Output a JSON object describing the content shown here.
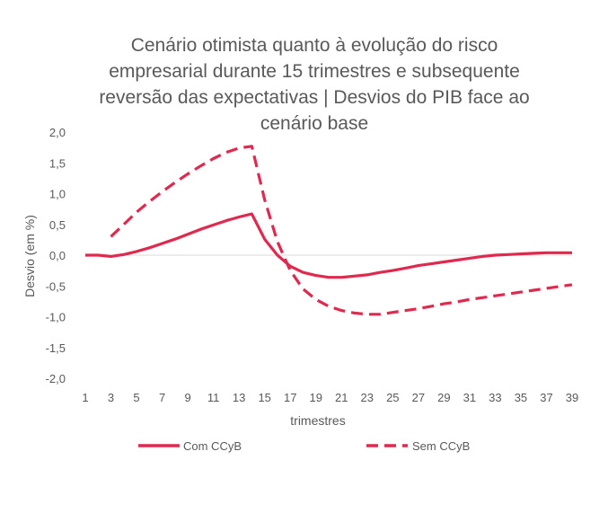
{
  "chart_data": {
    "type": "line",
    "title_lines": [
      "Cenário otimista quanto à evolução do risco",
      "empresarial durante 15 trimestres e subsequente",
      "reversão das expectativas | Desvios do PIB face ao",
      "cenário base"
    ],
    "xlabel": "trimestres",
    "ylabel": "Desvio (em %)",
    "xlim": [
      1,
      39
    ],
    "ylim": [
      -2.0,
      2.0
    ],
    "x_ticks": [
      1,
      3,
      5,
      7,
      9,
      11,
      13,
      15,
      17,
      19,
      21,
      23,
      25,
      27,
      29,
      31,
      33,
      35,
      37,
      39
    ],
    "y_ticks": [
      "2,0",
      "1,5",
      "1,0",
      "0,5",
      "0,0",
      "-0,5",
      "-1,0",
      "-1,5",
      "-2,0"
    ],
    "y_tick_values": [
      2.0,
      1.5,
      1.0,
      0.5,
      0.0,
      -0.5,
      -1.0,
      -1.5,
      -2.0
    ],
    "grid": false,
    "zero_line": true,
    "legend_position": "bottom",
    "series": [
      {
        "name": "Com CCyB",
        "style": "solid",
        "color": "#e0294f",
        "x": [
          1,
          2,
          3,
          4,
          5,
          6,
          7,
          8,
          9,
          10,
          11,
          12,
          13,
          14,
          15,
          16,
          17,
          18,
          19,
          20,
          21,
          22,
          23,
          24,
          25,
          26,
          27,
          28,
          29,
          30,
          31,
          32,
          33,
          34,
          35,
          36,
          37,
          38,
          39
        ],
        "values": [
          0.0,
          0.0,
          -0.02,
          0.01,
          0.06,
          0.12,
          0.19,
          0.26,
          0.34,
          0.42,
          0.49,
          0.56,
          0.62,
          0.67,
          0.26,
          0.0,
          -0.18,
          -0.28,
          -0.33,
          -0.36,
          -0.36,
          -0.34,
          -0.32,
          -0.28,
          -0.25,
          -0.21,
          -0.17,
          -0.14,
          -0.11,
          -0.08,
          -0.05,
          -0.02,
          0.0,
          0.01,
          0.02,
          0.03,
          0.04,
          0.04,
          0.04
        ]
      },
      {
        "name": "Sem CCyB",
        "style": "dashed",
        "color": "#e0294f",
        "x": [
          3,
          4,
          5,
          6,
          7,
          8,
          9,
          10,
          11,
          12,
          13,
          14,
          15,
          16,
          17,
          18,
          19,
          20,
          21,
          22,
          23,
          24,
          25,
          26,
          27,
          28,
          29,
          30,
          31,
          32,
          33,
          34,
          35,
          36,
          37,
          38,
          39
        ],
        "values": [
          0.3,
          0.5,
          0.7,
          0.87,
          1.03,
          1.18,
          1.32,
          1.45,
          1.57,
          1.67,
          1.74,
          1.77,
          0.9,
          0.22,
          -0.25,
          -0.55,
          -0.72,
          -0.83,
          -0.9,
          -0.94,
          -0.96,
          -0.96,
          -0.93,
          -0.9,
          -0.87,
          -0.83,
          -0.79,
          -0.76,
          -0.72,
          -0.69,
          -0.66,
          -0.63,
          -0.6,
          -0.57,
          -0.54,
          -0.51,
          -0.48
        ]
      }
    ]
  }
}
